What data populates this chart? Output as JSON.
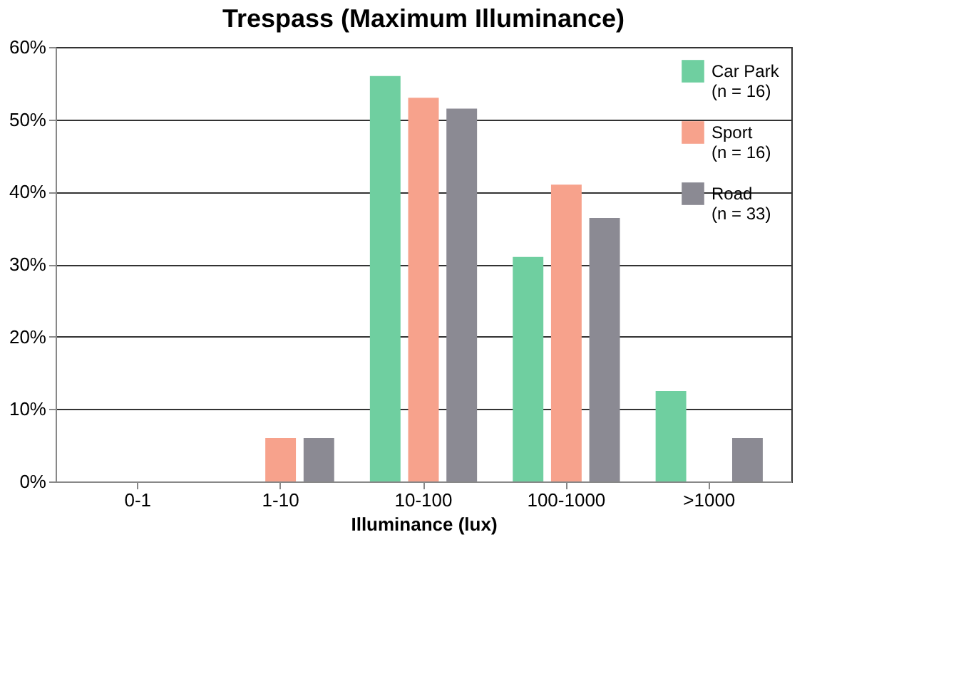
{
  "chart_data": {
    "type": "bar",
    "title": "Trespass (Maximum Illuminance)",
    "xlabel": "Illuminance (lux)",
    "categories": [
      "0-1",
      "1-10",
      "10-100",
      "100-1000",
      ">1000"
    ],
    "series": [
      {
        "name": "Car Park\n(n = 16)",
        "color": "#6fcfa0",
        "values": [
          0,
          0,
          56,
          31,
          12.5
        ]
      },
      {
        "name": "Sport\n(n = 16)",
        "color": "#f7a28c",
        "values": [
          0,
          6,
          53,
          41,
          0
        ]
      },
      {
        "name": "Road\n(n = 33)",
        "color": "#8b8a93",
        "values": [
          0,
          6,
          51.5,
          36.4,
          6
        ]
      }
    ],
    "ylim": [
      0,
      60
    ],
    "yticks": [
      {
        "value": 0,
        "label": "0%"
      },
      {
        "value": 10,
        "label": "10%"
      },
      {
        "value": 20,
        "label": "20%"
      },
      {
        "value": 30,
        "label": "30%"
      },
      {
        "value": 40,
        "label": "40%"
      },
      {
        "value": 50,
        "label": "50%"
      },
      {
        "value": 60,
        "label": "60%"
      }
    ],
    "grid": "y",
    "legend": "top right"
  }
}
